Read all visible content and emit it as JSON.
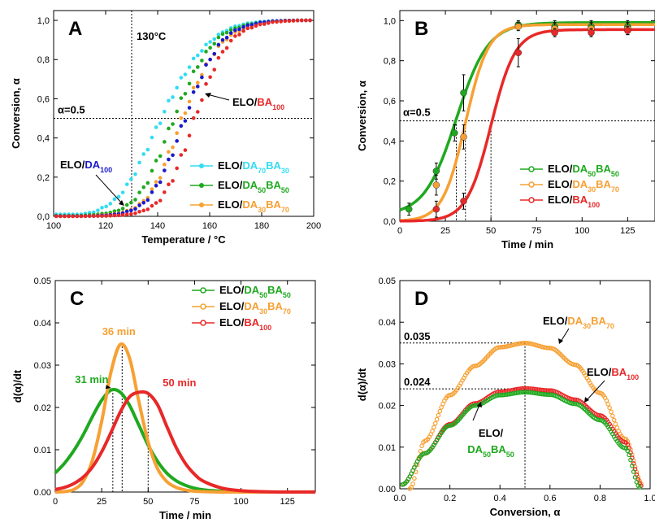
{
  "chart_data": [
    {
      "panel": "A",
      "type": "scatter",
      "xlabel": "Temperature / °C",
      "ylabel": "Conversion, α",
      "xlim": [
        100,
        200
      ],
      "ylim": [
        0,
        1.05
      ],
      "xticks": [
        "100",
        "120",
        "140",
        "160",
        "180",
        "200"
      ],
      "yticks": [
        "0,0",
        "0,2",
        "0,4",
        "0,6",
        "0,8",
        "1,0"
      ],
      "vline": {
        "x": 130,
        "label": "130°C"
      },
      "hline": {
        "y": 0.5,
        "label": "α=0.5"
      },
      "series": [
        {
          "name": "ELO/DA70BA30",
          "prefix": "ELO/",
          "parts": [
            [
              "DA",
              "70"
            ],
            [
              "BA",
              "30"
            ]
          ],
          "color": "#33dcf2",
          "x": [
            110,
            115,
            120,
            125,
            130,
            135,
            140,
            145,
            150,
            155,
            160,
            165,
            170,
            175,
            180,
            185,
            190,
            195,
            200
          ],
          "y": [
            0.01,
            0.02,
            0.05,
            0.1,
            0.19,
            0.32,
            0.46,
            0.6,
            0.72,
            0.82,
            0.89,
            0.94,
            0.97,
            0.985,
            0.993,
            0.997,
            0.999,
            1.0,
            1.0
          ]
        },
        {
          "name": "ELO/DA50BA50",
          "prefix": "ELO/",
          "parts": [
            [
              "DA",
              "50"
            ],
            [
              "BA",
              "50"
            ]
          ],
          "color": "#1fa91f",
          "x": [
            110,
            115,
            120,
            125,
            130,
            135,
            140,
            145,
            150,
            155,
            160,
            165,
            170,
            175,
            180,
            185,
            190,
            195,
            200
          ],
          "y": [
            0.003,
            0.008,
            0.015,
            0.03,
            0.07,
            0.15,
            0.29,
            0.46,
            0.62,
            0.76,
            0.86,
            0.93,
            0.96,
            0.98,
            0.99,
            0.996,
            0.999,
            1.0,
            1.0
          ]
        },
        {
          "name": "ELO/DA30BA70",
          "prefix": "ELO/",
          "parts": [
            [
              "DA",
              "30"
            ],
            [
              "BA",
              "70"
            ]
          ],
          "color": "#f7a033",
          "x": [
            110,
            115,
            120,
            125,
            130,
            135,
            140,
            145,
            150,
            155,
            160,
            165,
            170,
            175,
            180,
            185,
            190,
            195,
            200
          ],
          "y": [
            0.001,
            0.003,
            0.007,
            0.015,
            0.035,
            0.08,
            0.18,
            0.34,
            0.52,
            0.68,
            0.8,
            0.89,
            0.94,
            0.97,
            0.985,
            0.993,
            0.997,
            1.0,
            1.0
          ]
        },
        {
          "name": "ELO/DA100",
          "prefix": "ELO/",
          "parts": [
            [
              "DA",
              "100"
            ]
          ],
          "color": "#1a1acc",
          "x": [
            110,
            115,
            120,
            125,
            130,
            135,
            140,
            145,
            150,
            155,
            160,
            165,
            170,
            175,
            180,
            185,
            190,
            195,
            200
          ],
          "y": [
            0.001,
            0.002,
            0.005,
            0.012,
            0.03,
            0.07,
            0.16,
            0.3,
            0.48,
            0.66,
            0.8,
            0.9,
            0.95,
            0.975,
            0.99,
            0.996,
            0.999,
            1.0,
            1.0
          ]
        },
        {
          "name": "ELO/BA100",
          "prefix": "ELO/",
          "parts": [
            [
              "BA",
              "100"
            ]
          ],
          "color": "#e82828",
          "x": [
            110,
            115,
            120,
            125,
            130,
            135,
            140,
            145,
            150,
            155,
            160,
            165,
            170,
            175,
            180,
            185,
            190,
            195,
            200
          ],
          "y": [
            0.0,
            0.001,
            0.002,
            0.005,
            0.012,
            0.03,
            0.07,
            0.17,
            0.33,
            0.53,
            0.71,
            0.84,
            0.92,
            0.96,
            0.98,
            0.992,
            0.997,
            1.0,
            1.0
          ]
        }
      ]
    },
    {
      "panel": "B",
      "type": "scatter",
      "xlabel": "Time / min",
      "ylabel": "Conversion, α",
      "xlim": [
        0,
        140
      ],
      "ylim": [
        0,
        1.05
      ],
      "xticks": [
        "0",
        "25",
        "50",
        "75",
        "100",
        "125"
      ],
      "yticks": [
        "0,0",
        "0,2",
        "0,4",
        "0,6",
        "0,8",
        "1,0"
      ],
      "hline": {
        "y": 0.5,
        "label": "α=0.5"
      },
      "vlines": [
        31,
        36,
        50
      ],
      "series": [
        {
          "name": "ELO/DA50BA50",
          "prefix": "ELO/",
          "parts": [
            [
              "DA",
              "50"
            ],
            [
              "BA",
              "50"
            ]
          ],
          "color": "#1fa91f",
          "x": [
            5,
            20,
            30,
            35,
            65,
            85,
            105,
            125
          ],
          "y": [
            0.06,
            0.25,
            0.44,
            0.64,
            0.98,
            0.97,
            0.97,
            0.97
          ],
          "err": [
            0.03,
            0.04,
            0.04,
            0.09,
            0.02,
            0.03,
            0.03,
            0.03
          ],
          "fit": {
            "k": 0.115,
            "x0": 31,
            "max": 0.99,
            "min": 0.03
          }
        },
        {
          "name": "ELO/DA30BA70",
          "prefix": "ELO/",
          "parts": [
            [
              "DA",
              "30"
            ],
            [
              "BA",
              "70"
            ]
          ],
          "color": "#f7a033",
          "x": [
            20,
            35,
            65,
            85,
            105,
            125
          ],
          "y": [
            0.18,
            0.42,
            0.97,
            0.96,
            0.96,
            0.96
          ],
          "err": [
            0.05,
            0.06,
            0.02,
            0.03,
            0.03,
            0.03
          ],
          "fit": {
            "k": 0.16,
            "x0": 36,
            "max": 0.98,
            "min": 0.0
          }
        },
        {
          "name": "ELO/BA100",
          "prefix": "ELO/",
          "parts": [
            [
              "BA",
              "100"
            ]
          ],
          "color": "#e82828",
          "x": [
            20,
            35,
            65,
            85,
            105,
            125
          ],
          "y": [
            0.06,
            0.1,
            0.84,
            0.94,
            0.94,
            0.95
          ],
          "err": [
            0.04,
            0.04,
            0.07,
            0.02,
            0.02,
            0.02
          ],
          "fit": {
            "k": 0.15,
            "x0": 50,
            "max": 0.955,
            "min": 0.0
          }
        }
      ]
    },
    {
      "panel": "C",
      "type": "line",
      "xlabel": "Time / min",
      "ylabel": "d(α)/dt",
      "xlim": [
        0,
        140
      ],
      "ylim": [
        0,
        0.05
      ],
      "xticks": [
        "0",
        "25",
        "50",
        "75",
        "100",
        "125"
      ],
      "yticks": [
        "0.00",
        "0.01",
        "0.02",
        "0.03",
        "0.04",
        "0.05"
      ],
      "annotations": [
        {
          "text": "31 min",
          "x": 31,
          "y": 0.0242,
          "color": "#1fa91f"
        },
        {
          "text": "36 min",
          "x": 36,
          "y": 0.0352,
          "color": "#f7a033"
        },
        {
          "text": "50 min",
          "x": 50,
          "y": 0.0235,
          "color": "#e82828"
        }
      ],
      "series": [
        {
          "name": "ELO/DA50BA50",
          "prefix": "ELO/",
          "parts": [
            [
              "DA",
              "50"
            ],
            [
              "BA",
              "50"
            ]
          ],
          "color": "#1fa91f",
          "x": [
            0,
            5,
            10,
            15,
            20,
            25,
            30,
            35,
            40,
            45,
            50,
            55,
            60,
            65,
            70,
            75,
            80,
            90,
            100,
            110,
            120,
            130,
            140
          ],
          "y": [
            0.0045,
            0.0068,
            0.0098,
            0.0135,
            0.0178,
            0.0217,
            0.0241,
            0.0236,
            0.0205,
            0.0158,
            0.0111,
            0.0073,
            0.0045,
            0.0027,
            0.0016,
            0.0009,
            0.0005,
            0.0002,
            0.0001,
            0.0,
            0.0,
            0.0,
            0.0
          ]
        },
        {
          "name": "ELO/DA30BA70",
          "prefix": "ELO/",
          "parts": [
            [
              "DA",
              "30"
            ],
            [
              "BA",
              "70"
            ]
          ],
          "color": "#f7a033",
          "x": [
            0,
            5,
            10,
            15,
            20,
            25,
            30,
            35,
            40,
            45,
            50,
            55,
            60,
            65,
            70,
            75,
            80,
            90,
            100,
            110,
            120,
            130,
            140
          ],
          "y": [
            0.0,
            0.0001,
            0.0006,
            0.0025,
            0.0075,
            0.0167,
            0.0284,
            0.0349,
            0.0317,
            0.0214,
            0.0118,
            0.0056,
            0.0025,
            0.0011,
            0.0005,
            0.0002,
            0.0001,
            0.0,
            0.0,
            0.0,
            0.0,
            0.0,
            0.0
          ]
        },
        {
          "name": "ELO/BA100",
          "prefix": "ELO/",
          "parts": [
            [
              "BA",
              "100"
            ]
          ],
          "color": "#e82828",
          "x": [
            0,
            5,
            10,
            15,
            20,
            25,
            30,
            35,
            40,
            45,
            50,
            55,
            60,
            65,
            70,
            75,
            80,
            90,
            100,
            110,
            120,
            130,
            140
          ],
          "y": [
            0.0006,
            0.0011,
            0.002,
            0.0035,
            0.0059,
            0.0095,
            0.0141,
            0.0189,
            0.0225,
            0.0236,
            0.0233,
            0.0207,
            0.0156,
            0.0106,
            0.0068,
            0.0042,
            0.0025,
            0.0009,
            0.0003,
            0.0001,
            0.0,
            0.0,
            0.0
          ]
        }
      ]
    },
    {
      "panel": "D",
      "type": "scatter",
      "xlabel": "Conversion, α",
      "ylabel": "d(α)/dt",
      "xlim": [
        0,
        1.0
      ],
      "ylim": [
        0,
        0.05
      ],
      "xticks": [
        "0.0",
        "0.2",
        "0.4",
        "0.6",
        "0.8",
        "1.0"
      ],
      "yticks": [
        "0.00",
        "0.01",
        "0.02",
        "0.03",
        "0.04",
        "0.05"
      ],
      "refs": [
        {
          "text": "0.035",
          "x": 0.5,
          "y": 0.035
        },
        {
          "text": "0.024",
          "x": 0.5,
          "y": 0.024
        }
      ],
      "series": [
        {
          "name": "ELO/DA30BA70",
          "prefix": "ELO/",
          "parts": [
            [
              "DA",
              "30"
            ],
            [
              "BA",
              "70"
            ]
          ],
          "color": "#f7a033",
          "x": [
            0.04,
            0.1,
            0.2,
            0.3,
            0.4,
            0.5,
            0.6,
            0.7,
            0.8,
            0.9,
            0.97
          ],
          "y": [
            0.0,
            0.0115,
            0.0225,
            0.0295,
            0.034,
            0.035,
            0.0338,
            0.0298,
            0.023,
            0.012,
            0.001
          ]
        },
        {
          "name": "ELO/BA100",
          "prefix": "ELO/",
          "parts": [
            [
              "BA",
              "100"
            ]
          ],
          "color": "#e82828",
          "x": [
            0.01,
            0.1,
            0.2,
            0.3,
            0.4,
            0.5,
            0.6,
            0.7,
            0.8,
            0.9,
            0.97
          ],
          "y": [
            0.001,
            0.0085,
            0.0155,
            0.0205,
            0.0233,
            0.0241,
            0.0236,
            0.0214,
            0.0176,
            0.0112,
            0.0005
          ]
        },
        {
          "name": "ELO/DA50BA50",
          "prefix": "ELO/",
          "parts": [
            [
              "DA",
              "50"
            ],
            [
              "BA",
              "50"
            ]
          ],
          "color": "#1fa91f",
          "x": [
            0.01,
            0.1,
            0.2,
            0.3,
            0.4,
            0.5,
            0.6,
            0.7,
            0.8,
            0.9,
            0.96
          ],
          "y": [
            0.001,
            0.0085,
            0.0152,
            0.02,
            0.0225,
            0.0232,
            0.0226,
            0.0204,
            0.0165,
            0.0098,
            0.0003
          ]
        }
      ]
    }
  ]
}
